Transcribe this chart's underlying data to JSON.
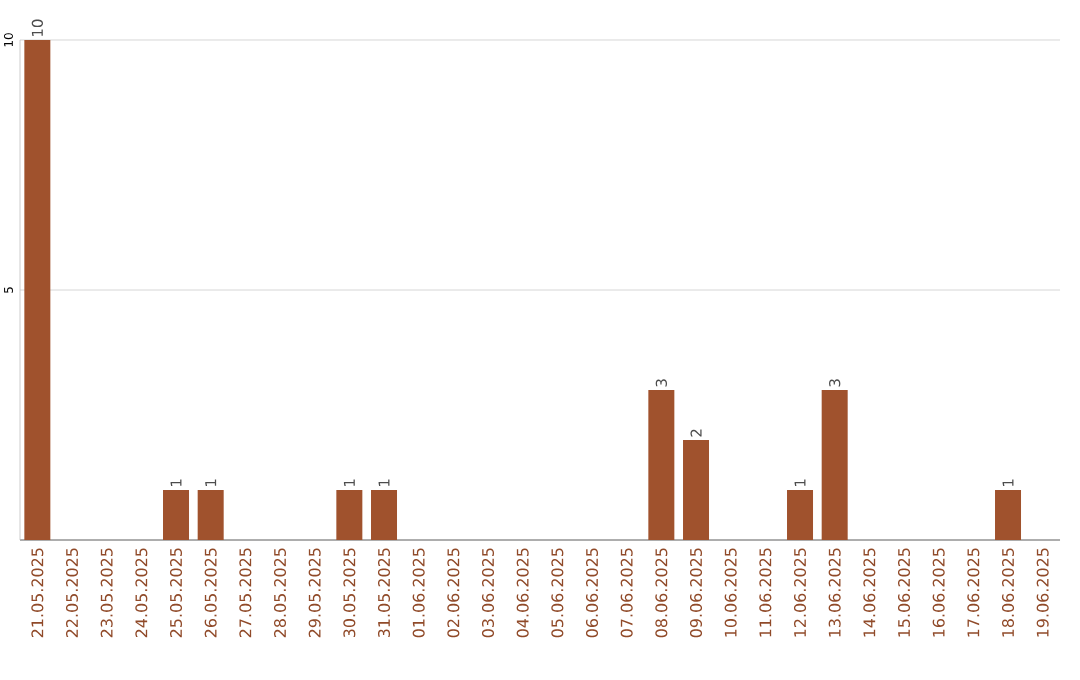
{
  "chart_data": {
    "type": "bar",
    "categories": [
      "21.05.2025",
      "22.05.2025",
      "23.05.2025",
      "24.05.2025",
      "25.05.2025",
      "26.05.2025",
      "27.05.2025",
      "28.05.2025",
      "29.05.2025",
      "30.05.2025",
      "31.05.2025",
      "01.06.2025",
      "02.06.2025",
      "03.06.2025",
      "04.06.2025",
      "05.06.2025",
      "06.06.2025",
      "07.06.2025",
      "08.06.2025",
      "09.06.2025",
      "10.06.2025",
      "11.06.2025",
      "12.06.2025",
      "13.06.2025",
      "14.06.2025",
      "15.06.2025",
      "16.06.2025",
      "17.06.2025",
      "18.06.2025",
      "19.06.2025"
    ],
    "values": [
      10,
      0,
      0,
      0,
      1,
      1,
      0,
      0,
      0,
      1,
      1,
      0,
      0,
      0,
      0,
      0,
      0,
      0,
      3,
      2,
      0,
      0,
      1,
      3,
      0,
      0,
      0,
      0,
      1,
      0
    ],
    "value_labels": [
      "10",
      null,
      null,
      null,
      "1",
      "1",
      null,
      null,
      null,
      "1",
      "1",
      null,
      null,
      null,
      null,
      null,
      null,
      null,
      "3",
      "2",
      null,
      null,
      "1",
      "3",
      null,
      null,
      null,
      null,
      "1",
      null
    ],
    "color": "#a0522d",
    "ylim": [
      0,
      10
    ],
    "yticks": [
      5,
      10
    ],
    "grid": "y"
  }
}
